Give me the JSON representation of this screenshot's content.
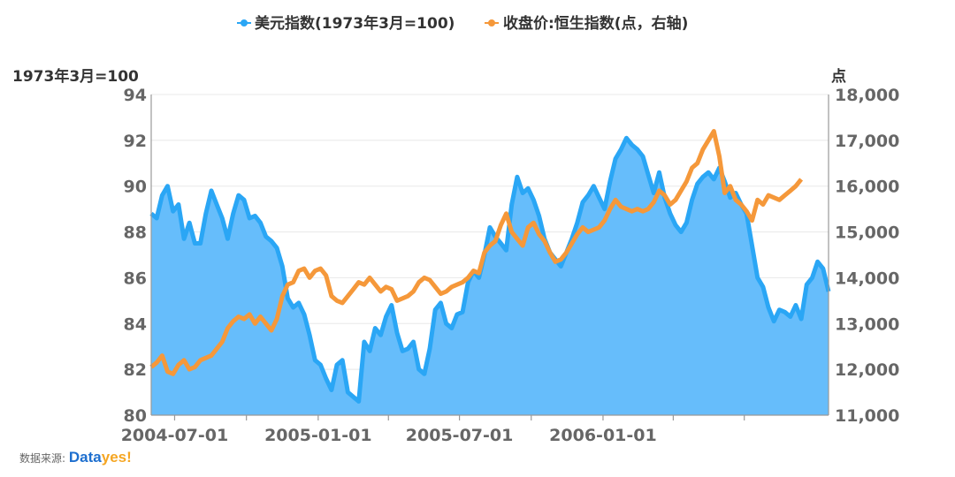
{
  "chart_data": {
    "type": "line",
    "series": [
      {
        "name": "美元指数(1973年3月=100)",
        "axis": "left",
        "style": "area",
        "color": "#2aa6f5",
        "fill": "#66bdfb",
        "points": [
          [
            "2004-06-01",
            88.8
          ],
          [
            "2004-06-08",
            88.6
          ],
          [
            "2004-06-15",
            89.6
          ],
          [
            "2004-06-22",
            90.0
          ],
          [
            "2004-06-29",
            88.9
          ],
          [
            "2004-07-06",
            89.2
          ],
          [
            "2004-07-13",
            87.7
          ],
          [
            "2004-07-20",
            88.4
          ],
          [
            "2004-07-27",
            87.5
          ],
          [
            "2004-08-03",
            87.5
          ],
          [
            "2004-08-10",
            88.8
          ],
          [
            "2004-08-17",
            89.8
          ],
          [
            "2004-08-24",
            89.2
          ],
          [
            "2004-08-31",
            88.6
          ],
          [
            "2004-09-07",
            87.7
          ],
          [
            "2004-09-14",
            88.8
          ],
          [
            "2004-09-21",
            89.6
          ],
          [
            "2004-09-28",
            89.4
          ],
          [
            "2004-10-05",
            88.6
          ],
          [
            "2004-10-12",
            88.7
          ],
          [
            "2004-10-19",
            88.4
          ],
          [
            "2004-10-26",
            87.8
          ],
          [
            "2004-11-02",
            87.6
          ],
          [
            "2004-11-09",
            87.3
          ],
          [
            "2004-11-16",
            86.5
          ],
          [
            "2004-11-23",
            85.1
          ],
          [
            "2004-11-30",
            84.7
          ],
          [
            "2004-12-07",
            84.9
          ],
          [
            "2004-12-14",
            84.4
          ],
          [
            "2004-12-21",
            83.5
          ],
          [
            "2004-12-28",
            82.4
          ],
          [
            "2005-01-04",
            82.2
          ],
          [
            "2005-01-11",
            81.6
          ],
          [
            "2005-01-18",
            81.1
          ],
          [
            "2005-01-25",
            82.2
          ],
          [
            "2005-02-01",
            82.4
          ],
          [
            "2005-02-08",
            81.0
          ],
          [
            "2005-02-15",
            80.8
          ],
          [
            "2005-02-22",
            80.6
          ],
          [
            "2005-03-01",
            83.2
          ],
          [
            "2005-03-08",
            82.8
          ],
          [
            "2005-03-15",
            83.8
          ],
          [
            "2005-03-22",
            83.5
          ],
          [
            "2005-03-29",
            84.3
          ],
          [
            "2005-04-05",
            84.8
          ],
          [
            "2005-04-12",
            83.6
          ],
          [
            "2005-04-19",
            82.8
          ],
          [
            "2005-04-26",
            82.9
          ],
          [
            "2005-05-03",
            83.2
          ],
          [
            "2005-05-10",
            82.0
          ],
          [
            "2005-05-17",
            81.8
          ],
          [
            "2005-05-24",
            82.9
          ],
          [
            "2005-05-31",
            84.6
          ],
          [
            "2005-06-07",
            84.9
          ],
          [
            "2005-06-14",
            84.0
          ],
          [
            "2005-06-21",
            83.8
          ],
          [
            "2005-06-28",
            84.4
          ],
          [
            "2005-07-05",
            84.5
          ],
          [
            "2005-07-12",
            85.8
          ],
          [
            "2005-07-19",
            86.3
          ],
          [
            "2005-07-26",
            86.0
          ],
          [
            "2005-08-02",
            87.0
          ],
          [
            "2005-08-09",
            88.2
          ],
          [
            "2005-08-16",
            87.8
          ],
          [
            "2005-08-23",
            87.5
          ],
          [
            "2005-08-30",
            87.2
          ],
          [
            "2005-09-06",
            89.2
          ],
          [
            "2005-09-13",
            90.4
          ],
          [
            "2005-09-20",
            89.7
          ],
          [
            "2005-09-27",
            89.9
          ],
          [
            "2005-10-04",
            89.4
          ],
          [
            "2005-10-11",
            88.7
          ],
          [
            "2005-10-18",
            87.7
          ],
          [
            "2005-10-25",
            87.1
          ],
          [
            "2005-11-01",
            86.8
          ],
          [
            "2005-11-08",
            86.5
          ],
          [
            "2005-11-15",
            87.1
          ],
          [
            "2005-11-22",
            87.7
          ],
          [
            "2005-11-29",
            88.4
          ],
          [
            "2005-12-06",
            89.3
          ],
          [
            "2005-12-13",
            89.6
          ],
          [
            "2005-12-20",
            90.0
          ],
          [
            "2005-12-27",
            89.5
          ],
          [
            "2006-01-03",
            89.0
          ],
          [
            "2006-01-10",
            90.2
          ],
          [
            "2006-01-17",
            91.2
          ],
          [
            "2006-01-24",
            91.6
          ],
          [
            "2006-01-31",
            92.1
          ],
          [
            "2006-02-07",
            91.8
          ],
          [
            "2006-02-14",
            91.6
          ],
          [
            "2006-02-21",
            91.3
          ],
          [
            "2006-02-28",
            90.5
          ],
          [
            "2006-03-07",
            89.7
          ],
          [
            "2006-03-14",
            90.6
          ],
          [
            "2006-03-21",
            89.5
          ],
          [
            "2006-03-28",
            88.8
          ],
          [
            "2006-04-04",
            88.3
          ],
          [
            "2006-04-11",
            88.0
          ],
          [
            "2006-04-18",
            88.4
          ],
          [
            "2006-04-25",
            89.4
          ],
          [
            "2006-05-02",
            90.1
          ],
          [
            "2006-05-09",
            90.4
          ],
          [
            "2006-05-16",
            90.6
          ],
          [
            "2006-05-23",
            90.3
          ],
          [
            "2006-05-30",
            90.8
          ],
          [
            "2006-06-06",
            90.2
          ],
          [
            "2006-06-13",
            89.5
          ],
          [
            "2006-06-20",
            89.7
          ],
          [
            "2006-06-27",
            89.2
          ],
          [
            "2006-07-04",
            88.8
          ],
          [
            "2006-07-11",
            87.4
          ],
          [
            "2006-07-18",
            86.0
          ],
          [
            "2006-07-25",
            85.6
          ],
          [
            "2006-08-01",
            84.7
          ],
          [
            "2006-08-08",
            84.1
          ],
          [
            "2006-08-15",
            84.6
          ],
          [
            "2006-08-22",
            84.5
          ],
          [
            "2006-08-29",
            84.3
          ],
          [
            "2006-09-05",
            84.8
          ],
          [
            "2006-09-12",
            84.2
          ],
          [
            "2006-09-19",
            85.7
          ],
          [
            "2006-09-26",
            86.0
          ],
          [
            "2006-10-03",
            86.7
          ],
          [
            "2006-10-10",
            86.4
          ],
          [
            "2006-10-17",
            85.4
          ]
        ]
      },
      {
        "name": "收盘价:恒生指数(点，右轴)",
        "axis": "right",
        "style": "line",
        "color": "#f5983a",
        "points": [
          [
            "2004-06-01",
            12050
          ],
          [
            "2004-06-08",
            12150
          ],
          [
            "2004-06-15",
            12300
          ],
          [
            "2004-06-22",
            11950
          ],
          [
            "2004-06-29",
            11900
          ],
          [
            "2004-07-06",
            12100
          ],
          [
            "2004-07-13",
            12200
          ],
          [
            "2004-07-20",
            12000
          ],
          [
            "2004-07-27",
            12050
          ],
          [
            "2004-08-03",
            12200
          ],
          [
            "2004-08-10",
            12250
          ],
          [
            "2004-08-17",
            12300
          ],
          [
            "2004-08-24",
            12450
          ],
          [
            "2004-08-31",
            12600
          ],
          [
            "2004-09-07",
            12900
          ],
          [
            "2004-09-14",
            13050
          ],
          [
            "2004-09-21",
            13150
          ],
          [
            "2004-09-28",
            13100
          ],
          [
            "2004-10-05",
            13200
          ],
          [
            "2004-10-12",
            13000
          ],
          [
            "2004-10-19",
            13150
          ],
          [
            "2004-10-26",
            13000
          ],
          [
            "2004-11-02",
            12850
          ],
          [
            "2004-11-09",
            13100
          ],
          [
            "2004-11-16",
            13600
          ],
          [
            "2004-11-23",
            13850
          ],
          [
            "2004-11-30",
            13900
          ],
          [
            "2004-12-07",
            14150
          ],
          [
            "2004-12-14",
            14200
          ],
          [
            "2004-12-21",
            14000
          ],
          [
            "2004-12-28",
            14150
          ],
          [
            "2005-01-04",
            14200
          ],
          [
            "2005-01-11",
            14050
          ],
          [
            "2005-01-18",
            13600
          ],
          [
            "2005-01-25",
            13500
          ],
          [
            "2005-02-01",
            13450
          ],
          [
            "2005-02-08",
            13600
          ],
          [
            "2005-02-15",
            13750
          ],
          [
            "2005-02-22",
            13900
          ],
          [
            "2005-03-01",
            13850
          ],
          [
            "2005-03-08",
            14000
          ],
          [
            "2005-03-15",
            13850
          ],
          [
            "2005-03-22",
            13700
          ],
          [
            "2005-03-29",
            13800
          ],
          [
            "2005-04-05",
            13750
          ],
          [
            "2005-04-12",
            13500
          ],
          [
            "2005-04-19",
            13550
          ],
          [
            "2005-04-26",
            13600
          ],
          [
            "2005-05-03",
            13700
          ],
          [
            "2005-05-10",
            13900
          ],
          [
            "2005-05-17",
            14000
          ],
          [
            "2005-05-24",
            13950
          ],
          [
            "2005-05-31",
            13800
          ],
          [
            "2005-06-07",
            13650
          ],
          [
            "2005-06-14",
            13700
          ],
          [
            "2005-06-21",
            13800
          ],
          [
            "2005-06-28",
            13850
          ],
          [
            "2005-07-05",
            13900
          ],
          [
            "2005-07-12",
            14000
          ],
          [
            "2005-07-19",
            14150
          ],
          [
            "2005-07-26",
            14100
          ],
          [
            "2005-08-02",
            14550
          ],
          [
            "2005-08-09",
            14700
          ],
          [
            "2005-08-16",
            14800
          ],
          [
            "2005-08-23",
            15150
          ],
          [
            "2005-08-30",
            15400
          ],
          [
            "2005-09-06",
            15000
          ],
          [
            "2005-09-13",
            14850
          ],
          [
            "2005-09-20",
            14700
          ],
          [
            "2005-09-27",
            15100
          ],
          [
            "2005-10-04",
            15200
          ],
          [
            "2005-10-11",
            14950
          ],
          [
            "2005-10-18",
            14800
          ],
          [
            "2005-10-25",
            14550
          ],
          [
            "2005-11-01",
            14350
          ],
          [
            "2005-11-08",
            14400
          ],
          [
            "2005-11-15",
            14550
          ],
          [
            "2005-11-22",
            14750
          ],
          [
            "2005-11-29",
            14950
          ],
          [
            "2005-12-06",
            15100
          ],
          [
            "2005-12-13",
            15000
          ],
          [
            "2005-12-20",
            15050
          ],
          [
            "2005-12-27",
            15100
          ],
          [
            "2006-01-03",
            15250
          ],
          [
            "2006-01-10",
            15500
          ],
          [
            "2006-01-17",
            15700
          ],
          [
            "2006-01-24",
            15550
          ],
          [
            "2006-01-31",
            15500
          ],
          [
            "2006-02-07",
            15450
          ],
          [
            "2006-02-14",
            15500
          ],
          [
            "2006-02-21",
            15450
          ],
          [
            "2006-02-28",
            15500
          ],
          [
            "2006-03-07",
            15650
          ],
          [
            "2006-03-14",
            15900
          ],
          [
            "2006-03-21",
            15800
          ],
          [
            "2006-03-28",
            15600
          ],
          [
            "2006-04-04",
            15700
          ],
          [
            "2006-04-11",
            15900
          ],
          [
            "2006-04-18",
            16100
          ],
          [
            "2006-04-25",
            16400
          ],
          [
            "2006-05-02",
            16500
          ],
          [
            "2006-05-09",
            16800
          ],
          [
            "2006-05-16",
            17000
          ],
          [
            "2006-05-23",
            17200
          ],
          [
            "2006-05-30",
            16650
          ],
          [
            "2006-06-06",
            15850
          ],
          [
            "2006-06-13",
            16000
          ],
          [
            "2006-06-20",
            15700
          ],
          [
            "2006-06-27",
            15600
          ],
          [
            "2006-07-04",
            15450
          ],
          [
            "2006-07-11",
            15250
          ],
          [
            "2006-07-18",
            15700
          ],
          [
            "2006-07-25",
            15600
          ],
          [
            "2006-08-01",
            15800
          ],
          [
            "2006-08-08",
            15750
          ],
          [
            "2006-08-15",
            15700
          ],
          [
            "2006-08-22",
            15800
          ],
          [
            "2006-08-29",
            15900
          ],
          [
            "2006-09-05",
            16000
          ],
          [
            "2006-09-12",
            16150
          ]
        ]
      }
    ],
    "x_range": [
      "2004-06-01",
      "2006-10-17"
    ],
    "x_ticks": [
      "2004-07-01",
      "2005-01-01",
      "2005-07-01",
      "2006-01-01"
    ],
    "x_minor_ticks": [
      "2004-10-01",
      "2005-04-01",
      "2005-10-01",
      "2006-04-01",
      "2006-07-01"
    ],
    "y_left": {
      "title": "1973年3月=100",
      "range": [
        80,
        94
      ],
      "ticks": [
        80,
        82,
        84,
        86,
        88,
        90,
        92,
        94
      ],
      "tick_labels": [
        "80",
        "82",
        "84",
        "86",
        "88",
        "90",
        "92",
        "94"
      ]
    },
    "y_right": {
      "title": "点",
      "range": [
        11000,
        18000
      ],
      "ticks": [
        11000,
        12000,
        13000,
        14000,
        15000,
        16000,
        17000,
        18000
      ],
      "tick_labels": [
        "11,000",
        "12,000",
        "13,000",
        "14,000",
        "15,000",
        "16,000",
        "17,000",
        "18,000"
      ]
    },
    "grid": true,
    "legend_position": "top-center"
  },
  "footer": {
    "source_label": "数据来源:",
    "brand_main": "Data",
    "brand_accent": "yes!"
  }
}
